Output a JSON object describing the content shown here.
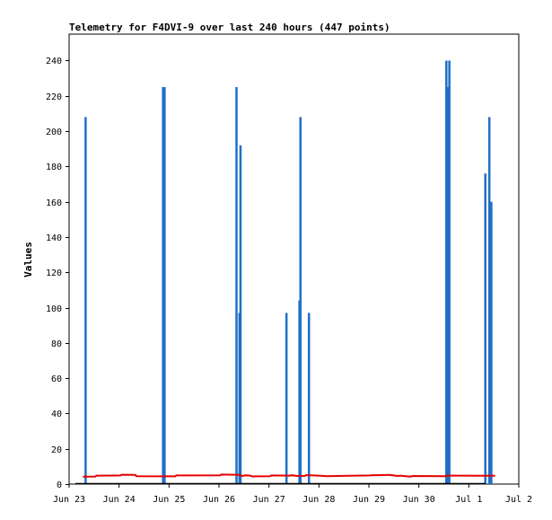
{
  "chart_data": {
    "type": "bar",
    "title": "Telemetry for F4DVI-9 over last 240 hours (447 points)",
    "ylabel": "Values",
    "xlabel": "",
    "ylim": [
      0,
      255
    ],
    "xlim": [
      "Jun 23",
      "Jul 2"
    ],
    "yticks": [
      0,
      20,
      40,
      60,
      80,
      100,
      120,
      140,
      160,
      180,
      200,
      220,
      240
    ],
    "xticks": [
      "Jun 23",
      "Jun 24",
      "Jun 25",
      "Jun 26",
      "Jun 27",
      "Jun 28",
      "Jun 29",
      "Jun 30",
      "Jul 1",
      "Jul 2"
    ],
    "grid": false,
    "colors": {
      "bars": "#1f6fc6",
      "line": "#e60000",
      "baseline": "#000000"
    },
    "series": [
      {
        "type": "bar",
        "color": "#1f6fc6",
        "x_days": [
          0.2,
          1.75,
          1.78,
          3.22,
          3.28,
          3.3,
          4.22,
          4.48,
          4.5,
          4.67,
          7.42,
          7.46,
          7.48,
          8.2,
          8.28,
          8.32
        ],
        "values": [
          208,
          225,
          225,
          225,
          97,
          192,
          97,
          104,
          208,
          97,
          240,
          225,
          240,
          176,
          208,
          160
        ]
      },
      {
        "type": "line",
        "color": "#e60000",
        "x_days": [
          0.15,
          0.4,
          0.42,
          0.9,
          0.92,
          1.2,
          1.22,
          2.0,
          2.02,
          2.9,
          2.92,
          3.25,
          3.35,
          3.4,
          3.5,
          3.55,
          3.6,
          3.9,
          3.92,
          4.3,
          4.32,
          4.45,
          4.6,
          4.62,
          5.0,
          5.02,
          5.9,
          5.92,
          6.3,
          6.32,
          6.45,
          6.5,
          6.7,
          6.75,
          7.4,
          7.42,
          8.4
        ],
        "values": [
          4.2,
          4.3,
          4.8,
          4.9,
          5.3,
          5.2,
          4.5,
          4.4,
          4.9,
          5.0,
          5.4,
          5.3,
          4.6,
          5.0,
          4.8,
          4.3,
          4.4,
          4.5,
          4.9,
          4.8,
          5.0,
          4.6,
          4.7,
          5.1,
          4.6,
          4.5,
          4.9,
          5.0,
          5.2,
          5.1,
          4.6,
          4.8,
          4.2,
          4.6,
          4.5,
          4.8,
          4.7
        ]
      }
    ]
  }
}
